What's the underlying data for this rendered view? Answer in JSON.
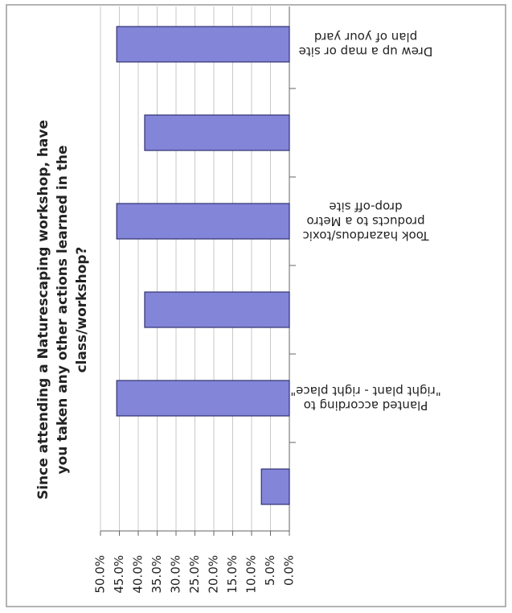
{
  "chart_data": {
    "type": "bar",
    "orientation": "horizontal",
    "title": "Since attending a Naturescaping workshop, have\nyou taken any other actions learned in the\nclass/workshop?",
    "categories": [
      "Drew up a map or site\nplan of your yard",
      null,
      "Took hazardous/toxic\nproducts to a Metro\ndrop-off site",
      null,
      "Planted according to\n\"right plant - right place\"",
      null
    ],
    "values": [
      45.7,
      38.3,
      45.7,
      38.3,
      45.7,
      7.4
    ],
    "color": "#8385d9",
    "ylim": [
      0,
      50
    ],
    "yticks": [
      {
        "value": 0,
        "label": "0.0%"
      },
      {
        "value": 5,
        "label": "5.0%"
      },
      {
        "value": 10,
        "label": "10.0%"
      },
      {
        "value": 15,
        "label": "15.0%"
      },
      {
        "value": 20,
        "label": "20.0%"
      },
      {
        "value": 25,
        "label": "25.0%"
      },
      {
        "value": 30,
        "label": "30.0%"
      },
      {
        "value": 35,
        "label": "35.0%"
      },
      {
        "value": 40,
        "label": "40.0%"
      },
      {
        "value": 45,
        "label": "45.0%"
      },
      {
        "value": 50,
        "label": "50.0%"
      }
    ],
    "grid": true
  }
}
